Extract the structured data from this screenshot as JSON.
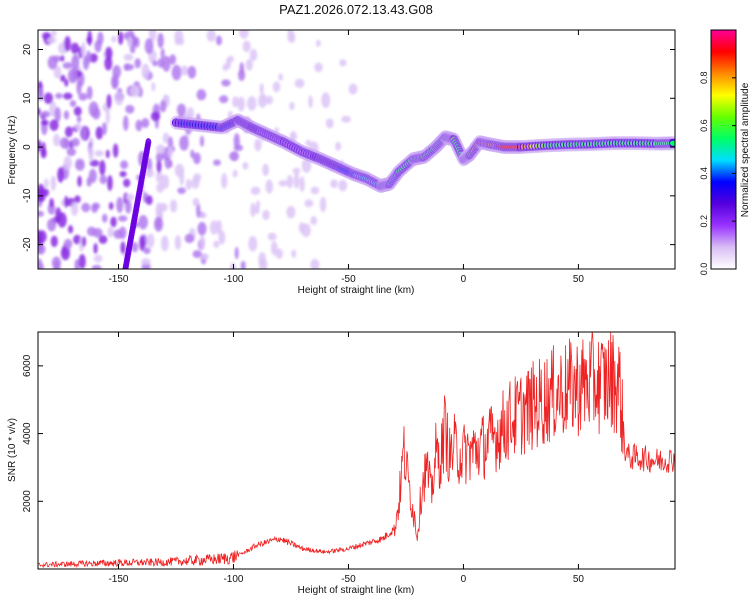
{
  "title": "PAZ1.2026.072.13.43.G08",
  "chart_data": [
    {
      "type": "heatmap",
      "name": "spectrogram",
      "xlabel": "Height of straight line (km)",
      "ylabel": "Frequency (Hz)",
      "xlim": [
        -185,
        92
      ],
      "ylim": [
        -25,
        24
      ],
      "xticks": [
        -150,
        -100,
        -50,
        0,
        50
      ],
      "yticks": [
        -20,
        -10,
        0,
        10,
        20
      ],
      "colorbar": {
        "label": "Normalized spectral amplitude",
        "range": [
          0.0,
          1.0
        ],
        "ticks": [
          0.0,
          0.2,
          0.4,
          0.6,
          0.8
        ],
        "tick_labels": [
          "0.0",
          "0.2",
          "0.4",
          "0.6",
          "0.8"
        ],
        "colors": [
          "#ffffff",
          "#d9bff5",
          "#9933ff",
          "#5500dd",
          "#0000ff",
          "#00ddff",
          "#00ff66",
          "#66ff00",
          "#ffff00",
          "#ff8800",
          "#ff0000",
          "#ff0099"
        ]
      },
      "ridge": {
        "x": [
          -125,
          -115,
          -105,
          -98,
          -92,
          -85,
          -78,
          -70,
          -62,
          -55,
          -48,
          -42,
          -36,
          -32,
          -28,
          -22,
          -17,
          -12,
          -8,
          -4,
          0,
          3,
          7,
          12,
          18,
          25,
          35,
          45,
          55,
          65,
          75,
          85,
          92
        ],
        "y": [
          5,
          4.5,
          4,
          5.5,
          4,
          2.5,
          1,
          -1,
          -2.5,
          -4,
          -5.5,
          -6.5,
          -8,
          -7.5,
          -5,
          -2.5,
          -2,
          0,
          2,
          1.5,
          -2.5,
          -1.5,
          1,
          0.5,
          0,
          0,
          0.3,
          0.5,
          0.6,
          0.8,
          0.8,
          0.7,
          0.8
        ],
        "amplitude": [
          0.3,
          0.4,
          0.35,
          0.3,
          0.25,
          0.2,
          0.2,
          0.2,
          0.25,
          0.3,
          0.4,
          0.45,
          0.4,
          0.45,
          0.5,
          0.55,
          0.6,
          0.5,
          0.55,
          0.6,
          0.5,
          0.6,
          0.9,
          0.8,
          0.95,
          0.9,
          0.6,
          0.5,
          0.55,
          0.5,
          0.5,
          0.55,
          0.5
        ]
      },
      "vertical_streak": {
        "x_top": -137,
        "y_top": 1,
        "x_bottom": -147,
        "y_bottom": -25
      }
    },
    {
      "type": "line",
      "name": "snr",
      "xlabel": "Height of straight line (km)",
      "ylabel": "SNR (10 * v/v)",
      "xlim": [
        -185,
        92
      ],
      "ylim": [
        0,
        7000
      ],
      "xticks": [
        -150,
        -100,
        -50,
        0,
        50
      ],
      "yticks": [
        2000,
        4000,
        6000
      ],
      "color": "#ee2222",
      "series": [
        {
          "name": "SNR",
          "x": [
            -185,
            -170,
            -150,
            -130,
            -115,
            -105,
            -100,
            -95,
            -90,
            -85,
            -80,
            -75,
            -70,
            -65,
            -60,
            -55,
            -50,
            -45,
            -40,
            -35,
            -30,
            -28,
            -26,
            -24,
            -22,
            -20,
            -18,
            -16,
            -14,
            -12,
            -10,
            -8,
            -6,
            -4,
            -2,
            0,
            5,
            10,
            15,
            20,
            25,
            30,
            35,
            40,
            45,
            50,
            55,
            60,
            65,
            68,
            70,
            72,
            75,
            80,
            85,
            92
          ],
          "y": [
            120,
            150,
            180,
            200,
            260,
            300,
            350,
            500,
            700,
            800,
            900,
            750,
            600,
            550,
            500,
            550,
            600,
            700,
            800,
            900,
            1200,
            2000,
            3500,
            2600,
            1800,
            1000,
            2500,
            3000,
            2200,
            3400,
            3200,
            4200,
            3300,
            3600,
            3400,
            3400,
            3500,
            3700,
            4000,
            4400,
            4600,
            4800,
            5000,
            5200,
            5300,
            5400,
            5500,
            5500,
            5600,
            5400,
            3600,
            3300,
            3300,
            3250,
            3200,
            3250
          ]
        }
      ]
    }
  ]
}
